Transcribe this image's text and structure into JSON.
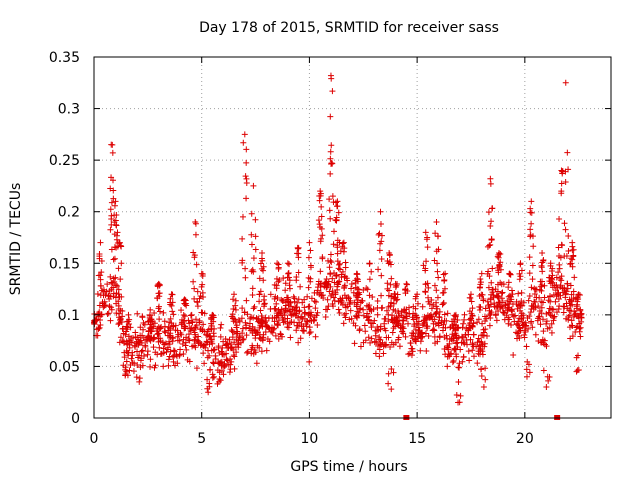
{
  "chart_data": {
    "type": "scatter",
    "title": "Day 178 of 2015, SRMTID for receiver sass",
    "xlabel": "GPS time / hours",
    "ylabel": "SRMTID / TECUs",
    "xlim": [
      0,
      24
    ],
    "ylim": [
      0,
      0.35
    ],
    "xticks": [
      0,
      5,
      10,
      15,
      20
    ],
    "yticks": [
      0,
      0.05,
      0.1,
      0.15,
      0.2,
      0.25,
      0.3,
      0.35
    ],
    "xtick_labels": [
      "0",
      "5",
      "10",
      "15",
      "20"
    ],
    "ytick_labels": [
      "0",
      "0.05",
      "0.1",
      "0.15",
      "0.2",
      "0.25",
      "0.3",
      "0.35"
    ],
    "grid": true,
    "marker": "plus",
    "color": "#dd0000",
    "envelope": [
      [
        0.0,
        0.09
      ],
      [
        0.5,
        0.11
      ],
      [
        1.0,
        0.12
      ],
      [
        1.5,
        0.065
      ],
      [
        2.0,
        0.07
      ],
      [
        2.5,
        0.075
      ],
      [
        3.0,
        0.08
      ],
      [
        3.5,
        0.07
      ],
      [
        4.0,
        0.075
      ],
      [
        4.5,
        0.085
      ],
      [
        5.0,
        0.08
      ],
      [
        5.5,
        0.06
      ],
      [
        6.0,
        0.06
      ],
      [
        6.5,
        0.07
      ],
      [
        7.0,
        0.09
      ],
      [
        7.5,
        0.085
      ],
      [
        8.0,
        0.09
      ],
      [
        8.5,
        0.1
      ],
      [
        9.0,
        0.105
      ],
      [
        9.5,
        0.1
      ],
      [
        10.0,
        0.09
      ],
      [
        10.5,
        0.12
      ],
      [
        11.0,
        0.13
      ],
      [
        11.5,
        0.12
      ],
      [
        12.0,
        0.105
      ],
      [
        12.5,
        0.1
      ],
      [
        13.0,
        0.085
      ],
      [
        13.5,
        0.08
      ],
      [
        14.0,
        0.09
      ],
      [
        14.5,
        0.09
      ],
      [
        15.0,
        0.08
      ],
      [
        15.5,
        0.1
      ],
      [
        16.0,
        0.095
      ],
      [
        16.5,
        0.075
      ],
      [
        17.0,
        0.07
      ],
      [
        17.5,
        0.08
      ],
      [
        18.0,
        0.07
      ],
      [
        18.5,
        0.12
      ],
      [
        19.0,
        0.11
      ],
      [
        19.5,
        0.1
      ],
      [
        20.0,
        0.09
      ],
      [
        20.5,
        0.11
      ],
      [
        21.0,
        0.09
      ],
      [
        21.5,
        0.13
      ],
      [
        22.0,
        0.11
      ],
      [
        22.5,
        0.09
      ]
    ],
    "peaks": [
      [
        0.05,
        0.095
      ],
      [
        0.3,
        0.17
      ],
      [
        0.8,
        0.265
      ],
      [
        1.0,
        0.21
      ],
      [
        1.2,
        0.17
      ],
      [
        1.6,
        0.1
      ],
      [
        2.6,
        0.1
      ],
      [
        3.0,
        0.13
      ],
      [
        3.6,
        0.12
      ],
      [
        4.2,
        0.115
      ],
      [
        4.7,
        0.19
      ],
      [
        5.0,
        0.14
      ],
      [
        5.5,
        0.1
      ],
      [
        6.5,
        0.12
      ],
      [
        7.0,
        0.275
      ],
      [
        7.4,
        0.225
      ],
      [
        7.8,
        0.16
      ],
      [
        8.5,
        0.15
      ],
      [
        9.0,
        0.15
      ],
      [
        9.5,
        0.165
      ],
      [
        10.0,
        0.17
      ],
      [
        10.5,
        0.22
      ],
      [
        11.0,
        0.332
      ],
      [
        11.3,
        0.21
      ],
      [
        11.6,
        0.17
      ],
      [
        12.2,
        0.14
      ],
      [
        12.8,
        0.15
      ],
      [
        13.3,
        0.2
      ],
      [
        13.7,
        0.16
      ],
      [
        14.0,
        0.13
      ],
      [
        14.5,
        0.13
      ],
      [
        15.0,
        0.12
      ],
      [
        15.4,
        0.18
      ],
      [
        15.9,
        0.19
      ],
      [
        16.3,
        0.14
      ],
      [
        16.8,
        0.1
      ],
      [
        17.5,
        0.12
      ],
      [
        18.0,
        0.14
      ],
      [
        18.4,
        0.232
      ],
      [
        18.8,
        0.16
      ],
      [
        19.3,
        0.14
      ],
      [
        19.8,
        0.15
      ],
      [
        20.3,
        0.21
      ],
      [
        20.8,
        0.16
      ],
      [
        21.2,
        0.15
      ],
      [
        21.7,
        0.24
      ],
      [
        21.9,
        0.325
      ],
      [
        22.2,
        0.17
      ],
      [
        22.5,
        0.12
      ]
    ],
    "dips": [
      [
        1.5,
        0.045
      ],
      [
        2.1,
        0.035
      ],
      [
        5.3,
        0.025
      ],
      [
        5.8,
        0.035
      ],
      [
        13.8,
        0.028
      ],
      [
        16.4,
        0.05
      ],
      [
        16.9,
        0.015
      ],
      [
        18.1,
        0.03
      ],
      [
        20.1,
        0.04
      ],
      [
        21.0,
        0.03
      ],
      [
        22.4,
        0.045
      ]
    ],
    "zero_markers": [
      [
        14.5,
        0
      ],
      [
        21.5,
        0
      ]
    ]
  }
}
